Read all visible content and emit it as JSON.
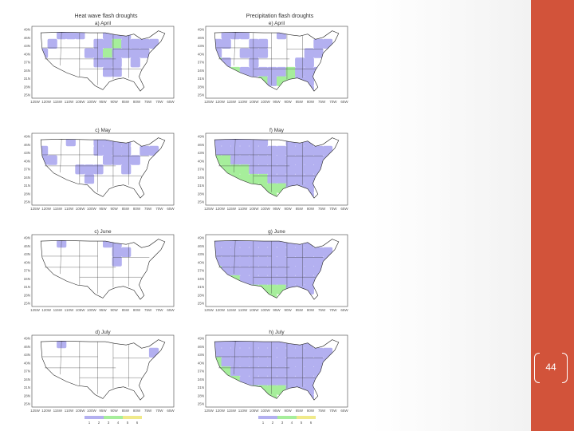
{
  "slide": {
    "page_number": "44",
    "colors": {
      "accent_bar": "#d2533a",
      "drought_purple": "#b3b0f0",
      "drought_green": "#a6ee9b",
      "drought_yellow": "#f0ea8a"
    }
  },
  "figure": {
    "column_titles": [
      "Heat wave flash droughts",
      "Precipitation flash droughts"
    ],
    "panels": [
      {
        "label": "a) April",
        "title": "Heat wave flash droughts",
        "coverage": "moderate",
        "state_grid": [
          "0.0.1.1.1.0.0.1.1.1.0.0.0.0",
          "0.1.0.0.0.0.1.1.2.1.1.1.1.0",
          "1.0.0.0.0.1.1.2.1.1.1.1.0.0",
          "0.0.0.0.0.0.1.1.1.0.1.0.0.0",
          "0.0.0.0.0.0.0.1.1.0.0.0.0.0",
          "0.0.0.0.0.0.0.0.0.0.0.0.0.0",
          "0.0.0.0.0.0.0.0.0.0.0.0.0.0"
        ]
      },
      {
        "label": "e) April",
        "title": "Precipitation flash droughts",
        "coverage": "moderate",
        "state_grid": [
          "0.1.1.1.0.0.0.1.0.0.0.0.0.0",
          "1.1.0.0.1.1.0.0.0.0.0.1.1.0",
          "1.0.0.1.1.1.0.0.0.0.1.1.0.0",
          "2.1.0.0.1.0.0.0.0.1.1.0.0.0",
          "0.2.2.1.1.1.1.1.2.1.1.1.0.0",
          "0.0.0.0.0.2.1.2.2.1.1.0.0.0",
          "0.0.0.0.0.0.0.0.0.0.1.0.0.0"
        ]
      },
      {
        "label": "c) May",
        "title": "",
        "coverage": "moderate",
        "state_grid": [
          "0.0.0.1.0.0.1.1.1.1.0.0.0.0",
          "1.0.0.0.0.0.1.1.1.1.0.1.1.0",
          "1.1.0.0.0.0.0.1.1.1.1.0.0.0",
          "0.0.0.0.1.1.1.0.0.1.0.0.0.0",
          "0.0.0.0.0.1.0.0.0.0.0.0.0.0",
          "0.0.0.0.0.0.0.0.0.0.0.0.0.0",
          "0.0.0.0.0.0.0.0.0.0.0.0.0.0"
        ]
      },
      {
        "label": "f) May",
        "title": "",
        "coverage": "high",
        "state_grid": [
          "1.1.1.1.1.1.0.0.1.1.1.0.0.0",
          "1.1.1.1.1.1.1.1.1.1.1.1.1.0",
          "2.2.1.1.1.1.1.1.1.1.1.1.1.0",
          "2.2.2.2.1.1.1.1.1.1.1.1.0.0",
          "0.2.2.2.2.2.1.1.1.1.1.1.0.0",
          "0.0.0.2.2.2.2.2.1.1.1.0.0.0",
          "0.0.0.0.0.2.2.0.0.0.1.0.0.0"
        ]
      },
      {
        "label": "c) June",
        "title": "",
        "coverage": "low",
        "state_grid": [
          "0.0.1.0.0.0.0.1.1.0.0.0.0.0",
          "0.0.0.0.0.0.0.0.1.1.0.0.0.0",
          "0.0.0.0.0.0.0.0.1.0.0.0.0.0",
          "0.0.0.0.0.0.0.0.0.0.0.0.0.0",
          "0.0.0.0.0.0.0.0.0.0.0.0.0.0",
          "0.0.0.0.0.0.0.0.0.0.0.0.0.0",
          "0.0.0.0.0.0.0.0.0.0.0.0.0.0"
        ]
      },
      {
        "label": "g) June",
        "title": "",
        "coverage": "high",
        "state_grid": [
          "1.1.1.1.1.1.1.1.1.1.1.0.0.0",
          "1.1.1.1.1.1.1.1.1.1.1.1.1.0",
          "1.1.1.1.1.1.1.1.1.1.1.1.1.0",
          "2.1.1.1.1.1.1.1.1.1.1.1.0.0",
          "2.2.2.1.1.1.1.1.1.1.1.1.0.0",
          "0.2.2.2.2.2.2.2.1.1.1.0.0.0",
          "0.0.0.0.2.2.2.0.0.0.0.0.0.0"
        ]
      },
      {
        "label": "d) July",
        "title": "",
        "coverage": "low",
        "state_grid": [
          "0.0.1.0.0.0.0.0.0.0.0.0.0.0",
          "0.0.0.0.0.0.0.0.0.0.0.0.1.0",
          "0.0.0.0.0.0.0.0.0.0.0.0.0.0",
          "0.0.0.0.0.0.0.0.0.0.0.0.0.0",
          "0.0.0.0.0.0.0.0.0.0.0.0.0.0",
          "0.0.0.0.0.0.0.0.0.0.0.0.0.0",
          "0.0.0.0.0.0.0.0.0.0.0.0.0.0"
        ]
      },
      {
        "label": "h) July",
        "title": "",
        "coverage": "high",
        "state_grid": [
          "1.1.1.1.1.1.1.1.1.1.1.0.0.0",
          "1.1.1.1.1.1.1.1.1.1.1.1.1.0",
          "2.1.1.1.1.1.1.1.1.1.1.1.1.0",
          "2.2.1.1.1.1.1.1.1.1.1.1.0.0",
          "2.2.2.1.1.1.1.1.1.1.1.1.0.0",
          "0.2.2.2.2.2.2.2.1.1.1.0.0.0",
          "0.0.0.0.2.2.2.0.0.0.1.0.0.0"
        ]
      }
    ],
    "lat_ticks": [
      "49N",
      "46N",
      "43N",
      "40N",
      "37N",
      "34N",
      "31N",
      "28N",
      "25N"
    ],
    "lon_ticks": [
      "125W",
      "120W",
      "115W",
      "110W",
      "105W",
      "100W",
      "95W",
      "90W",
      "85W",
      "80W",
      "75W",
      "70W",
      "65W"
    ],
    "colorbar": {
      "labels": [
        "1",
        "2",
        "3",
        "4",
        "5",
        "6"
      ]
    }
  }
}
